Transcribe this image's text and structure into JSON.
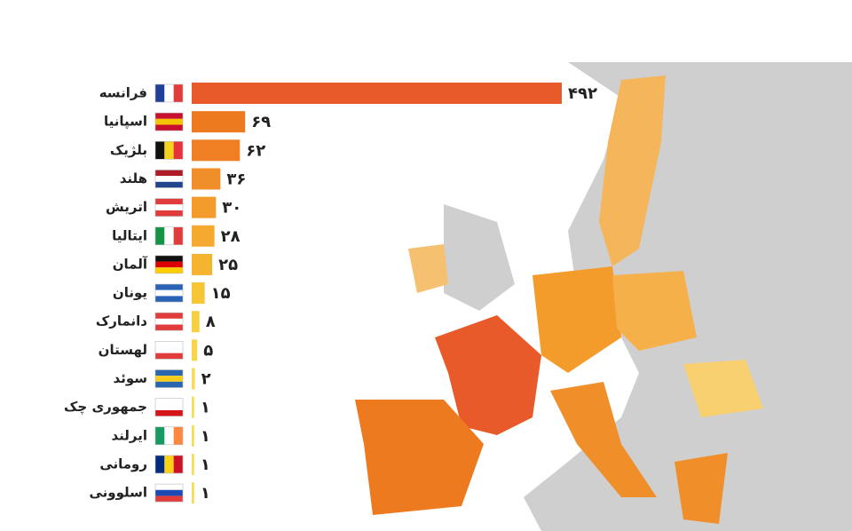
{
  "chart_data": {
    "type": "bar",
    "orientation": "horizontal",
    "categories": [
      "فرانسه",
      "اسپانیا",
      "بلژیک",
      "هلند",
      "اتریش",
      "ایتالیا",
      "آلمان",
      "یونان",
      "دانمارک",
      "لهستان",
      "سوئد",
      "جمهوری چک",
      "ایرلند",
      "رومانی",
      "اسلوونی"
    ],
    "values": [
      492,
      69,
      62,
      36,
      30,
      28,
      25,
      15,
      8,
      5,
      2,
      1,
      1,
      1,
      1
    ],
    "value_labels": [
      "۴۹۲",
      "۶۹",
      "۶۲",
      "۳۶",
      "۳۰",
      "۲۸",
      "۲۵",
      "۱۵",
      "۸",
      "۵",
      "۲",
      "۱",
      "۱",
      "۱",
      "۱"
    ],
    "colors": [
      "#e85a2a",
      "#ee7a20",
      "#ef7f22",
      "#f08f2a",
      "#f39c2b",
      "#f5a92e",
      "#f5b430",
      "#f7c634",
      "#f7d040",
      "#f7d64a",
      "#f7db5a",
      "#f7dc60",
      "#f7dc60",
      "#f7dc60",
      "#f7dc60"
    ]
  }
}
